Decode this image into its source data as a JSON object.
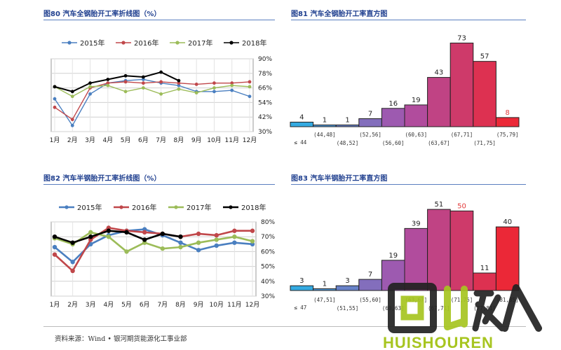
{
  "panels": {
    "p80": {
      "title": "图80  汽车全钢胎开工率折线图（%）"
    },
    "p81": {
      "title": "图81  汽车全钢胎开工率直方图"
    },
    "p82": {
      "title": "图82  汽车半钢胎开工率折线图（%）"
    },
    "p83": {
      "title": "图83  汽车半钢胎开工率直方图"
    }
  },
  "source": "资料来源：Wind • 银河期货能源化工事业部",
  "watermark": {
    "text": "HUISHOUREN",
    "colors": {
      "green": "#a7c520",
      "dark": "#222222"
    }
  },
  "chart_data": [
    {
      "type": "line",
      "title": "图80  汽车全钢胎开工率折线图（%）",
      "categories": [
        "1月",
        "2月",
        "3月",
        "4月",
        "5月",
        "6月",
        "7月",
        "8月",
        "9月",
        "10月",
        "11月",
        "12月"
      ],
      "ylim": [
        30,
        90
      ],
      "yticks": [
        "30%",
        "42%",
        "54%",
        "66%",
        "78%",
        "90%"
      ],
      "grid": true,
      "legend": "top",
      "series": [
        {
          "name": "2015年",
          "color": "#4a7fc0",
          "values": [
            57,
            35,
            61,
            70,
            72,
            73,
            70,
            68,
            63,
            63,
            64,
            59
          ]
        },
        {
          "name": "2016年",
          "color": "#c0474a",
          "values": [
            50,
            40,
            66,
            70,
            71,
            70,
            71,
            70,
            69,
            70,
            70,
            71
          ]
        },
        {
          "name": "2017年",
          "color": "#9cbc59",
          "values": [
            67,
            59,
            67,
            68,
            63,
            66,
            61,
            65,
            62,
            66,
            68,
            67
          ]
        },
        {
          "name": "2018年",
          "color": "#000000",
          "values": [
            67,
            63,
            70,
            73,
            76,
            75,
            79,
            72,
            null,
            null,
            null,
            null
          ]
        }
      ]
    },
    {
      "type": "bar",
      "title": "图81  汽车全钢胎开工率直方图",
      "categories": [
        "≤ 44",
        "(44,48]",
        "(48,52]",
        "(52,56]",
        "(56,60]",
        "(60,63]",
        "(63,67]",
        "(67,71]",
        "(71,75]",
        "(75,79]"
      ],
      "values": [
        4,
        1,
        1,
        7,
        16,
        19,
        43,
        73,
        57,
        8
      ],
      "ylim": [
        0,
        80
      ],
      "highlight_index": 9,
      "highlight_color": "#e23a3a"
    },
    {
      "type": "line",
      "title": "图82  汽车半钢胎开工率折线图（%）",
      "categories": [
        "1月",
        "2月",
        "3月",
        "4月",
        "5月",
        "6月",
        "7月",
        "8月",
        "9月",
        "10月",
        "11月",
        "12月"
      ],
      "ylim": [
        30,
        80
      ],
      "yticks": [
        "30%",
        "40%",
        "50%",
        "60%",
        "70%",
        "80%"
      ],
      "grid": true,
      "legend": "top",
      "series": [
        {
          "name": "2015年",
          "color": "#4a7fc0",
          "values": [
            63,
            53,
            65,
            71,
            74,
            75,
            71,
            66,
            61,
            64,
            66,
            65
          ]
        },
        {
          "name": "2016年",
          "color": "#c0474a",
          "values": [
            58,
            47,
            68,
            76,
            74,
            73,
            72,
            70,
            72,
            71,
            74,
            74
          ]
        },
        {
          "name": "2017年",
          "color": "#9cbc59",
          "values": [
            69,
            65,
            73,
            70,
            60,
            66,
            62,
            63,
            66,
            68,
            70,
            67
          ]
        },
        {
          "name": "2018年",
          "color": "#000000",
          "values": [
            70,
            66,
            70,
            74,
            73,
            68,
            72,
            70,
            null,
            null,
            null,
            null
          ]
        }
      ]
    },
    {
      "type": "bar",
      "title": "图83  汽车半钢胎开工率直方图",
      "categories": [
        "≤ 47",
        "(47,51]",
        "(51,55]",
        "(55,60]",
        "(60,63]",
        "(63,67]",
        "(67,71]",
        "(71,75]",
        "(77,81]",
        "(81,85]"
      ],
      "values": [
        3,
        1,
        3,
        7,
        19,
        39,
        51,
        50,
        11,
        40
      ],
      "ylim": [
        0,
        55
      ],
      "highlight_index": 7,
      "highlight_color": "#e23a3a"
    }
  ]
}
